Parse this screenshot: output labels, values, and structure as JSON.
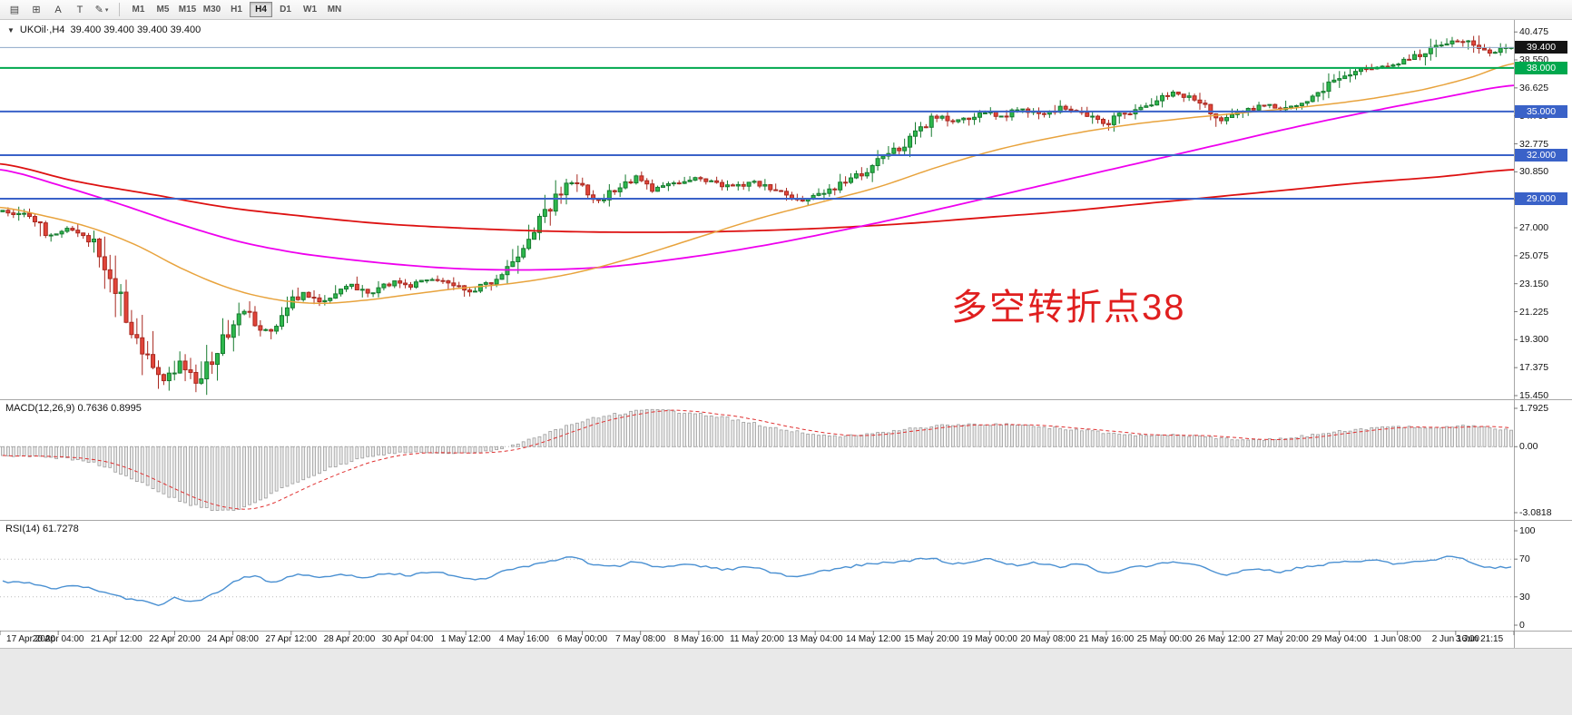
{
  "toolbar": {
    "tools": [
      {
        "name": "chart-list-icon",
        "glyph": "▤"
      },
      {
        "name": "crosshair-tool-button",
        "glyph": "⊞"
      },
      {
        "name": "text-label-tool-button",
        "glyph": "A"
      },
      {
        "name": "text-tool-button",
        "glyph": "T"
      },
      {
        "name": "draw-tools-button",
        "glyph": "✎",
        "caret": "▾"
      }
    ],
    "timeframes": [
      "M1",
      "M5",
      "M15",
      "M30",
      "H1",
      "H4",
      "D1",
      "W1",
      "MN"
    ],
    "active_timeframe": "H4"
  },
  "chart": {
    "collapse_arrow": "▼",
    "symbol_info": "UKOil·,H4  39.400 39.400 39.400 39.400",
    "annotation": {
      "text": "多空转折点38",
      "color": "#e01f1f"
    },
    "current_price": "39.400"
  },
  "price_scale": {
    "labels": [
      "40.475",
      "38.550",
      "36.625",
      "34.700",
      "32.775",
      "30.850",
      "28.925",
      "27.000",
      "25.075",
      "23.150",
      "21.225",
      "19.300",
      "17.375",
      "15.450"
    ],
    "highlighted": [
      {
        "text": "39.400",
        "price": 39.4,
        "bg": "#141414",
        "fg": "#ffffff"
      },
      {
        "text": "38.000",
        "price": 38.0,
        "bg": "#00a84e",
        "fg": "#ffffff"
      },
      {
        "text": "35.000",
        "price": 35.0,
        "bg": "#3a62c8",
        "fg": "#ffffff"
      },
      {
        "text": "32.000",
        "price": 32.0,
        "bg": "#3a62c8",
        "fg": "#ffffff"
      },
      {
        "text": "29.000",
        "price": 29.0,
        "bg": "#3a62c8",
        "fg": "#ffffff"
      }
    ]
  },
  "macd_panel": {
    "label": "MACD(12,26,9) 0.7636 0.8995",
    "axis": [
      {
        "text": "1.7925",
        "value": 1.7925
      },
      {
        "text": "0.00",
        "value": 0
      },
      {
        "text": "-3.0818",
        "value": -3.0818
      }
    ]
  },
  "rsi_panel": {
    "label": "RSI(14) 61.7278",
    "axis": [
      {
        "text": "100",
        "value": 100
      },
      {
        "text": "70",
        "value": 70
      },
      {
        "text": "30",
        "value": 30
      },
      {
        "text": "0",
        "value": 0
      }
    ],
    "level_lines": [
      70,
      30
    ]
  },
  "time_axis": [
    "17 Apr 2020",
    "20 Apr 04:00",
    "21 Apr 12:00",
    "22 Apr 20:00",
    "24 Apr 08:00",
    "27 Apr 12:00",
    "28 Apr 20:00",
    "30 Apr 04:00",
    "1 May 12:00",
    "4 May 16:00",
    "6 May 00:00",
    "7 May 08:00",
    "8 May 16:00",
    "11 May 20:00",
    "13 May 04:00",
    "14 May 12:00",
    "15 May 20:00",
    "19 May 00:00",
    "20 May 08:00",
    "21 May 16:00",
    "25 May 00:00",
    "26 May 12:00",
    "27 May 20:00",
    "29 May 04:00",
    "1 Jun 08:00",
    "2 Jun 16:00",
    "3 Jun 21:15"
  ],
  "chart_data": {
    "type": "candlestick",
    "symbol": "UKOil",
    "timeframe": "H4",
    "bars": 282,
    "price_range": [
      15.2,
      41.3
    ],
    "current_price": 39.4,
    "levels": [
      {
        "price": 39.4,
        "color": "#8ea8c8",
        "width": 1
      },
      {
        "price": 38.0,
        "color": "#00a84e",
        "width": 2
      },
      {
        "price": 35.0,
        "color": "#3a62c8",
        "width": 2
      },
      {
        "price": 32.0,
        "color": "#3a62c8",
        "width": 2
      },
      {
        "price": 29.0,
        "color": "#3a62c8",
        "width": 2
      }
    ],
    "colors": {
      "up": "#2eb84d",
      "up_stroke": "#157a2e",
      "down": "#e2453a",
      "down_stroke": "#a8281f"
    },
    "close_path": [
      [
        0.0,
        28.1
      ],
      [
        0.012,
        27.9
      ],
      [
        0.022,
        27.5
      ],
      [
        0.032,
        26.4
      ],
      [
        0.042,
        26.9
      ],
      [
        0.052,
        26.6
      ],
      [
        0.06,
        25.9
      ],
      [
        0.068,
        24.6
      ],
      [
        0.076,
        22.8
      ],
      [
        0.084,
        20.6
      ],
      [
        0.092,
        18.9
      ],
      [
        0.1,
        17.3
      ],
      [
        0.106,
        16.4
      ],
      [
        0.112,
        17.0
      ],
      [
        0.118,
        17.9
      ],
      [
        0.124,
        16.8
      ],
      [
        0.13,
        16.3
      ],
      [
        0.136,
        17.6
      ],
      [
        0.144,
        19.0
      ],
      [
        0.152,
        20.3
      ],
      [
        0.16,
        21.2
      ],
      [
        0.168,
        20.4
      ],
      [
        0.176,
        19.9
      ],
      [
        0.184,
        20.8
      ],
      [
        0.192,
        21.9
      ],
      [
        0.2,
        22.5
      ],
      [
        0.208,
        21.9
      ],
      [
        0.216,
        22.2
      ],
      [
        0.224,
        22.7
      ],
      [
        0.232,
        23.0
      ],
      [
        0.242,
        22.4
      ],
      [
        0.252,
        22.9
      ],
      [
        0.262,
        23.3
      ],
      [
        0.27,
        23.0
      ],
      [
        0.28,
        23.4
      ],
      [
        0.29,
        23.3
      ],
      [
        0.3,
        23.0
      ],
      [
        0.31,
        22.6
      ],
      [
        0.32,
        23.1
      ],
      [
        0.33,
        23.9
      ],
      [
        0.34,
        25.0
      ],
      [
        0.35,
        26.6
      ],
      [
        0.36,
        28.1
      ],
      [
        0.37,
        29.5
      ],
      [
        0.378,
        30.2
      ],
      [
        0.386,
        29.5
      ],
      [
        0.394,
        28.9
      ],
      [
        0.402,
        29.3
      ],
      [
        0.412,
        30.0
      ],
      [
        0.422,
        30.5
      ],
      [
        0.43,
        29.7
      ],
      [
        0.44,
        29.9
      ],
      [
        0.45,
        30.1
      ],
      [
        0.46,
        30.4
      ],
      [
        0.472,
        30.1
      ],
      [
        0.484,
        29.8
      ],
      [
        0.496,
        30.1
      ],
      [
        0.508,
        29.8
      ],
      [
        0.52,
        29.2
      ],
      [
        0.53,
        28.9
      ],
      [
        0.54,
        29.2
      ],
      [
        0.552,
        29.8
      ],
      [
        0.564,
        30.4
      ],
      [
        0.576,
        31.3
      ],
      [
        0.588,
        32.1
      ],
      [
        0.6,
        32.9
      ],
      [
        0.61,
        33.9
      ],
      [
        0.62,
        34.7
      ],
      [
        0.63,
        34.4
      ],
      [
        0.64,
        34.6
      ],
      [
        0.652,
        35.0
      ],
      [
        0.662,
        34.7
      ],
      [
        0.672,
        35.1
      ],
      [
        0.682,
        35.0
      ],
      [
        0.692,
        34.8
      ],
      [
        0.702,
        35.3
      ],
      [
        0.712,
        35.0
      ],
      [
        0.722,
        34.6
      ],
      [
        0.731,
        34.2
      ],
      [
        0.74,
        34.7
      ],
      [
        0.75,
        35.1
      ],
      [
        0.76,
        35.4
      ],
      [
        0.769,
        36.0
      ],
      [
        0.778,
        36.3
      ],
      [
        0.788,
        35.9
      ],
      [
        0.798,
        35.4
      ],
      [
        0.808,
        34.5
      ],
      [
        0.818,
        34.9
      ],
      [
        0.828,
        35.2
      ],
      [
        0.838,
        35.4
      ],
      [
        0.846,
        35.1
      ],
      [
        0.856,
        35.5
      ],
      [
        0.866,
        35.9
      ],
      [
        0.876,
        36.6
      ],
      [
        0.886,
        37.3
      ],
      [
        0.896,
        37.8
      ],
      [
        0.906,
        38.0
      ],
      [
        0.916,
        38.2
      ],
      [
        0.923,
        38.3
      ],
      [
        0.932,
        38.6
      ],
      [
        0.941,
        39.0
      ],
      [
        0.95,
        39.4
      ],
      [
        0.958,
        39.8
      ],
      [
        0.966,
        39.9
      ],
      [
        0.974,
        39.6
      ],
      [
        0.982,
        39.1
      ],
      [
        0.99,
        39.2
      ],
      [
        1.0,
        39.4
      ]
    ],
    "ma": [
      {
        "name": "ma-slow-red",
        "color": "#dd1111",
        "width": 1.8,
        "points": [
          [
            0,
            31.4
          ],
          [
            0.05,
            30.2
          ],
          [
            0.1,
            29.3
          ],
          [
            0.15,
            28.4
          ],
          [
            0.2,
            27.8
          ],
          [
            0.25,
            27.3
          ],
          [
            0.3,
            27.0
          ],
          [
            0.35,
            26.8
          ],
          [
            0.4,
            26.7
          ],
          [
            0.45,
            26.7
          ],
          [
            0.5,
            26.8
          ],
          [
            0.55,
            27.0
          ],
          [
            0.6,
            27.3
          ],
          [
            0.65,
            27.7
          ],
          [
            0.7,
            28.1
          ],
          [
            0.75,
            28.6
          ],
          [
            0.8,
            29.1
          ],
          [
            0.85,
            29.6
          ],
          [
            0.9,
            30.1
          ],
          [
            0.95,
            30.5
          ],
          [
            1.0,
            31.0
          ]
        ]
      },
      {
        "name": "ma-mid-magenta",
        "color": "#ee00ee",
        "width": 1.8,
        "points": [
          [
            0,
            31.0
          ],
          [
            0.04,
            29.9
          ],
          [
            0.08,
            28.6
          ],
          [
            0.12,
            27.2
          ],
          [
            0.16,
            26.0
          ],
          [
            0.2,
            25.2
          ],
          [
            0.25,
            24.6
          ],
          [
            0.3,
            24.2
          ],
          [
            0.35,
            24.1
          ],
          [
            0.4,
            24.3
          ],
          [
            0.45,
            24.9
          ],
          [
            0.5,
            25.7
          ],
          [
            0.55,
            26.7
          ],
          [
            0.6,
            27.8
          ],
          [
            0.65,
            29.0
          ],
          [
            0.7,
            30.2
          ],
          [
            0.75,
            31.4
          ],
          [
            0.8,
            32.6
          ],
          [
            0.85,
            33.8
          ],
          [
            0.9,
            34.9
          ],
          [
            0.95,
            35.9
          ],
          [
            1.0,
            36.8
          ]
        ]
      },
      {
        "name": "ma-fast-orange",
        "color": "#e8a33d",
        "width": 1.5,
        "points": [
          [
            0,
            28.4
          ],
          [
            0.03,
            27.8
          ],
          [
            0.06,
            27.0
          ],
          [
            0.09,
            25.8
          ],
          [
            0.12,
            24.2
          ],
          [
            0.15,
            22.9
          ],
          [
            0.18,
            22.1
          ],
          [
            0.21,
            21.8
          ],
          [
            0.24,
            22.0
          ],
          [
            0.27,
            22.4
          ],
          [
            0.3,
            22.8
          ],
          [
            0.34,
            23.2
          ],
          [
            0.38,
            23.9
          ],
          [
            0.42,
            25.0
          ],
          [
            0.46,
            26.3
          ],
          [
            0.5,
            27.6
          ],
          [
            0.54,
            28.7
          ],
          [
            0.58,
            29.8
          ],
          [
            0.62,
            31.2
          ],
          [
            0.66,
            32.4
          ],
          [
            0.7,
            33.3
          ],
          [
            0.74,
            34.0
          ],
          [
            0.78,
            34.5
          ],
          [
            0.82,
            34.9
          ],
          [
            0.86,
            35.3
          ],
          [
            0.9,
            35.8
          ],
          [
            0.94,
            36.5
          ],
          [
            0.97,
            37.3
          ],
          [
            1.0,
            38.3
          ]
        ]
      }
    ],
    "macd": {
      "range": [
        -3.0818,
        1.7925
      ],
      "values": [
        0.7636,
        0.8995
      ],
      "path": [
        [
          0,
          -0.45
        ],
        [
          0.03,
          -0.5
        ],
        [
          0.06,
          -0.75
        ],
        [
          0.09,
          -1.6
        ],
        [
          0.11,
          -2.3
        ],
        [
          0.13,
          -2.8
        ],
        [
          0.15,
          -3.0
        ],
        [
          0.17,
          -2.5
        ],
        [
          0.19,
          -1.8
        ],
        [
          0.21,
          -1.2
        ],
        [
          0.23,
          -0.7
        ],
        [
          0.25,
          -0.4
        ],
        [
          0.27,
          -0.25
        ],
        [
          0.29,
          -0.28
        ],
        [
          0.31,
          -0.3
        ],
        [
          0.33,
          -0.1
        ],
        [
          0.35,
          0.35
        ],
        [
          0.37,
          0.85
        ],
        [
          0.39,
          1.3
        ],
        [
          0.41,
          1.55
        ],
        [
          0.43,
          1.7
        ],
        [
          0.45,
          1.6
        ],
        [
          0.47,
          1.45
        ],
        [
          0.49,
          1.2
        ],
        [
          0.51,
          0.9
        ],
        [
          0.53,
          0.65
        ],
        [
          0.55,
          0.5
        ],
        [
          0.57,
          0.55
        ],
        [
          0.59,
          0.7
        ],
        [
          0.61,
          0.9
        ],
        [
          0.63,
          1.0
        ],
        [
          0.65,
          1.05
        ],
        [
          0.67,
          1.0
        ],
        [
          0.69,
          0.9
        ],
        [
          0.71,
          0.8
        ],
        [
          0.73,
          0.65
        ],
        [
          0.75,
          0.55
        ],
        [
          0.77,
          0.55
        ],
        [
          0.79,
          0.5
        ],
        [
          0.81,
          0.38
        ],
        [
          0.83,
          0.32
        ],
        [
          0.85,
          0.4
        ],
        [
          0.87,
          0.55
        ],
        [
          0.89,
          0.75
        ],
        [
          0.91,
          0.88
        ],
        [
          0.93,
          0.9
        ],
        [
          0.95,
          0.92
        ],
        [
          0.97,
          1.0
        ],
        [
          0.985,
          0.9
        ],
        [
          1.0,
          0.764
        ]
      ]
    },
    "rsi": {
      "value": 61.7278,
      "path": [
        [
          0,
          46
        ],
        [
          0.02,
          44
        ],
        [
          0.035,
          39
        ],
        [
          0.05,
          42
        ],
        [
          0.065,
          35
        ],
        [
          0.08,
          29
        ],
        [
          0.095,
          25
        ],
        [
          0.105,
          22
        ],
        [
          0.115,
          29
        ],
        [
          0.125,
          25
        ],
        [
          0.14,
          33
        ],
        [
          0.155,
          47
        ],
        [
          0.165,
          52
        ],
        [
          0.18,
          46
        ],
        [
          0.195,
          54
        ],
        [
          0.21,
          51
        ],
        [
          0.225,
          54
        ],
        [
          0.24,
          51
        ],
        [
          0.255,
          55
        ],
        [
          0.27,
          53
        ],
        [
          0.285,
          56
        ],
        [
          0.3,
          52
        ],
        [
          0.315,
          48
        ],
        [
          0.33,
          56
        ],
        [
          0.35,
          63
        ],
        [
          0.365,
          68
        ],
        [
          0.378,
          73
        ],
        [
          0.39,
          65
        ],
        [
          0.405,
          62
        ],
        [
          0.42,
          67
        ],
        [
          0.435,
          61
        ],
        [
          0.45,
          64
        ],
        [
          0.465,
          62
        ],
        [
          0.48,
          59
        ],
        [
          0.495,
          62
        ],
        [
          0.51,
          56
        ],
        [
          0.525,
          52
        ],
        [
          0.54,
          56
        ],
        [
          0.555,
          60
        ],
        [
          0.57,
          64
        ],
        [
          0.585,
          66
        ],
        [
          0.6,
          68
        ],
        [
          0.615,
          71
        ],
        [
          0.63,
          65
        ],
        [
          0.645,
          68
        ],
        [
          0.655,
          70
        ],
        [
          0.67,
          64
        ],
        [
          0.685,
          66
        ],
        [
          0.7,
          62
        ],
        [
          0.715,
          65
        ],
        [
          0.731,
          55
        ],
        [
          0.745,
          60
        ],
        [
          0.76,
          63
        ],
        [
          0.769,
          66
        ],
        [
          0.78,
          67
        ],
        [
          0.795,
          62
        ],
        [
          0.808,
          53
        ],
        [
          0.82,
          57
        ],
        [
          0.835,
          59
        ],
        [
          0.846,
          56
        ],
        [
          0.86,
          61
        ],
        [
          0.875,
          64
        ],
        [
          0.885,
          67
        ],
        [
          0.9,
          68
        ],
        [
          0.91,
          69
        ],
        [
          0.923,
          65
        ],
        [
          0.935,
          67
        ],
        [
          0.95,
          70
        ],
        [
          0.962,
          73
        ],
        [
          0.975,
          66
        ],
        [
          0.985,
          61
        ],
        [
          1.0,
          61.7
        ]
      ]
    }
  }
}
